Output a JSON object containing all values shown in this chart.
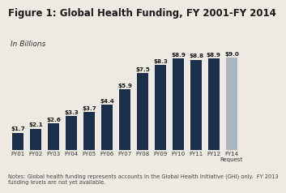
{
  "title": "Figure 1: Global Health Funding, FY 2001-FY 2014",
  "subtitle": "In Billions",
  "categories": [
    "FY01",
    "FY02",
    "FY03",
    "FY04",
    "FY05",
    "FY06",
    "FY07",
    "FY08",
    "FY09",
    "FY10",
    "FY11",
    "FY12",
    "FY14"
  ],
  "last_label_sub": "Request",
  "values": [
    1.7,
    2.1,
    2.6,
    3.3,
    3.7,
    4.4,
    5.9,
    7.5,
    8.3,
    8.9,
    8.8,
    8.9,
    9.0
  ],
  "bar_colors": [
    "#1b2f4b",
    "#1b2f4b",
    "#1b2f4b",
    "#1b2f4b",
    "#1b2f4b",
    "#1b2f4b",
    "#1b2f4b",
    "#1b2f4b",
    "#1b2f4b",
    "#1b2f4b",
    "#1b2f4b",
    "#1b2f4b",
    "#a9b5c0"
  ],
  "labels": [
    "$1.7",
    "$2.1",
    "$2.6",
    "$3.3",
    "$3.7",
    "$4.4",
    "$5.9",
    "$7.5",
    "$8.3",
    "$8.9",
    "$8.8",
    "$8.9",
    "$9.0"
  ],
  "note": "Notes: Global health funding represents accounts in the Global Health Initiative (GHI) only.  FY 2013\nfunding levels are not yet available.",
  "background_color": "#edeae4",
  "ylim": [
    0,
    11.0
  ],
  "bar_width": 0.6,
  "bar_label_fontsize": 5.2,
  "title_fontsize": 8.5,
  "subtitle_fontsize": 6.5,
  "note_fontsize": 4.8,
  "tick_fontsize": 5.0,
  "title_color": "#1a1a1a",
  "bar_label_color": "#1a1a1a",
  "note_color": "#444444",
  "tick_color": "#333333"
}
